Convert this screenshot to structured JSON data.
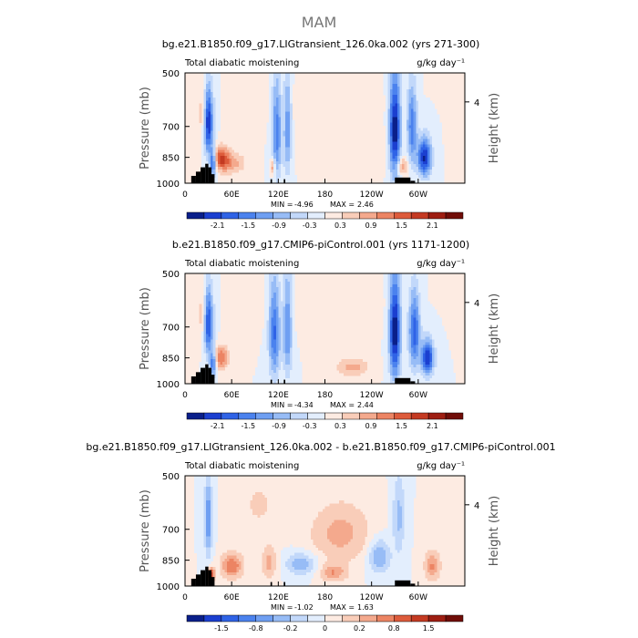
{
  "figure": {
    "title": "MAM"
  },
  "palette": {
    "neg": [
      "#0a1f8a",
      "#1b3fd0",
      "#2f63e6",
      "#4b82ee",
      "#6f9ff2",
      "#97bcf6",
      "#c2d8fa",
      "#e3eefd"
    ],
    "pos": [
      "#fdebe2",
      "#f9cdb9",
      "#f4a98d",
      "#ec8463",
      "#dd5b3b",
      "#c43a22",
      "#9e1e12",
      "#700d08"
    ],
    "terrain": "#000000"
  },
  "chart_data": [
    {
      "type": "heatmap",
      "title": "bg.e21.B1850.f09_g17.LIGtransient_126.0ka.002 (yrs 271-300)",
      "left_label": "Total diabatic moistening",
      "right_label": "g/kg day⁻¹",
      "ylabel": "Pressure (mb)",
      "ylabel_right": "Height (km)",
      "x_ticks": [
        "0",
        "60E",
        "120E",
        "180",
        "120W",
        "60W"
      ],
      "y_ticks": [
        "500",
        "700",
        "850",
        "1000"
      ],
      "y_right_ticks": [
        "4"
      ],
      "stats": {
        "min_label": "MIN =",
        "min": "-4.96",
        "max_label": "MAX =",
        "max": "2.46"
      },
      "colorbar_labels": [
        "-2.1",
        "-1.5",
        "-0.9",
        "-0.3",
        "0.3",
        "0.9",
        "1.5",
        "2.1"
      ],
      "features": [
        {
          "lon": 30,
          "p": 680,
          "amp": -1.0,
          "wlon": 6,
          "wp": 140
        },
        {
          "lon": 36,
          "p": 880,
          "amp": -0.8,
          "wlon": 4,
          "wp": 70
        },
        {
          "lon": 46,
          "p": 850,
          "amp": 0.5,
          "wlon": 10,
          "wp": 60
        },
        {
          "lon": 58,
          "p": 880,
          "amp": 0.35,
          "wlon": 18,
          "wp": 60
        },
        {
          "lon": 24,
          "p": 650,
          "amp": 0.25,
          "wlon": 8,
          "wp": 120
        },
        {
          "lon": 118,
          "p": 720,
          "amp": -0.6,
          "wlon": 6,
          "wp": 220
        },
        {
          "lon": 132,
          "p": 700,
          "amp": -0.5,
          "wlon": 5,
          "wp": 220
        },
        {
          "lon": 113,
          "p": 900,
          "amp": 0.4,
          "wlon": 3,
          "wp": 50
        },
        {
          "lon": 270,
          "p": 720,
          "amp": -1.0,
          "wlon": 7,
          "wp": 230
        },
        {
          "lon": 292,
          "p": 700,
          "amp": -0.6,
          "wlon": 6,
          "wp": 170
        },
        {
          "lon": 308,
          "p": 850,
          "amp": -0.9,
          "wlon": 9,
          "wp": 100
        },
        {
          "lon": 278,
          "p": 900,
          "amp": 0.35,
          "wlon": 8,
          "wp": 50
        },
        {
          "lon": 180,
          "p": 620,
          "amp": 0.1,
          "wlon": 60,
          "wp": 100
        },
        {
          "lon": 220,
          "p": 820,
          "amp": 0.1,
          "wlon": 50,
          "wp": 100
        }
      ]
    },
    {
      "type": "heatmap",
      "title": "b.e21.B1850.f09_g17.CMIP6-piControl.001 (yrs 1171-1200)",
      "left_label": "Total diabatic moistening",
      "right_label": "g/kg day⁻¹",
      "ylabel": "Pressure (mb)",
      "ylabel_right": "Height (km)",
      "x_ticks": [
        "0",
        "60E",
        "120E",
        "180",
        "120W",
        "60W"
      ],
      "y_ticks": [
        "500",
        "700",
        "850",
        "1000"
      ],
      "y_right_ticks": [
        "4"
      ],
      "stats": {
        "min_label": "MIN =",
        "min": "-4.34",
        "max_label": "MAX =",
        "max": "2.44"
      },
      "colorbar_labels": [
        "-2.1",
        "-1.5",
        "-0.9",
        "-0.3",
        "0.3",
        "0.9",
        "1.5",
        "2.1"
      ],
      "features": [
        {
          "lon": 30,
          "p": 680,
          "amp": -0.9,
          "wlon": 6,
          "wp": 140
        },
        {
          "lon": 36,
          "p": 880,
          "amp": -0.7,
          "wlon": 4,
          "wp": 70
        },
        {
          "lon": 46,
          "p": 850,
          "amp": 0.5,
          "wlon": 10,
          "wp": 60
        },
        {
          "lon": 24,
          "p": 650,
          "amp": 0.25,
          "wlon": 8,
          "wp": 120
        },
        {
          "lon": 115,
          "p": 720,
          "amp": -0.65,
          "wlon": 7,
          "wp": 220
        },
        {
          "lon": 132,
          "p": 700,
          "amp": -0.55,
          "wlon": 6,
          "wp": 220
        },
        {
          "lon": 270,
          "p": 720,
          "amp": -1.0,
          "wlon": 7,
          "wp": 230
        },
        {
          "lon": 295,
          "p": 720,
          "amp": -0.7,
          "wlon": 7,
          "wp": 170
        },
        {
          "lon": 312,
          "p": 850,
          "amp": -0.9,
          "wlon": 8,
          "wp": 90
        },
        {
          "lon": 215,
          "p": 900,
          "amp": 0.3,
          "wlon": 22,
          "wp": 50
        },
        {
          "lon": 180,
          "p": 620,
          "amp": 0.1,
          "wlon": 60,
          "wp": 100
        }
      ]
    },
    {
      "type": "heatmap",
      "title": "bg.e21.B1850.f09_g17.LIGtransient_126.0ka.002 - b.e21.B1850.f09_g17.CMIP6-piControl.001",
      "left_label": "Total diabatic moistening",
      "right_label": "g/kg day⁻¹",
      "ylabel": "Pressure (mb)",
      "ylabel_right": "Height (km)",
      "x_ticks": [
        "0",
        "60E",
        "120E",
        "180",
        "120W",
        "60W"
      ],
      "y_ticks": [
        "500",
        "700",
        "850",
        "1000"
      ],
      "y_right_ticks": [
        "4"
      ],
      "stats": {
        "min_label": "MIN =",
        "min": "-1.02",
        "max_label": "MAX =",
        "max": "1.63"
      },
      "colorbar_labels": [
        "-1.5",
        "-0.8",
        "-0.2",
        "0",
        "0.2",
        "0.8",
        "1.5"
      ],
      "features": [
        {
          "lon": 30,
          "p": 660,
          "amp": -0.5,
          "wlon": 5,
          "wp": 160
        },
        {
          "lon": 34,
          "p": 930,
          "amp": 0.7,
          "wlon": 4,
          "wp": 40
        },
        {
          "lon": 60,
          "p": 880,
          "amp": 0.5,
          "wlon": 14,
          "wp": 70
        },
        {
          "lon": 108,
          "p": 860,
          "amp": 0.3,
          "wlon": 10,
          "wp": 90
        },
        {
          "lon": 150,
          "p": 870,
          "amp": -0.35,
          "wlon": 20,
          "wp": 60
        },
        {
          "lon": 200,
          "p": 720,
          "amp": 0.3,
          "wlon": 40,
          "wp": 140
        },
        {
          "lon": 190,
          "p": 920,
          "amp": 0.35,
          "wlon": 18,
          "wp": 50
        },
        {
          "lon": 250,
          "p": 830,
          "amp": -0.4,
          "wlon": 14,
          "wp": 90
        },
        {
          "lon": 275,
          "p": 650,
          "amp": -0.3,
          "wlon": 8,
          "wp": 160
        },
        {
          "lon": 318,
          "p": 880,
          "amp": 0.4,
          "wlon": 10,
          "wp": 80
        },
        {
          "lon": 95,
          "p": 600,
          "amp": 0.15,
          "wlon": 25,
          "wp": 100
        }
      ]
    }
  ]
}
